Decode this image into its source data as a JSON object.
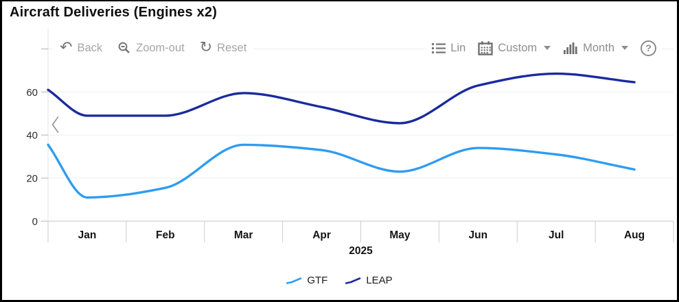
{
  "header": {
    "title": "Aircraft Deliveries (Engines x2)"
  },
  "toolbar": {
    "back_label": "Back",
    "zoom_out_label": "Zoom-out",
    "reset_label": "Reset",
    "lin_label": "Lin",
    "custom_label": "Custom",
    "month_label": "Month",
    "help_glyph": "?"
  },
  "icons": {
    "back": "↶",
    "reset": "↻",
    "zoom_out": "magnifier-with-minus",
    "lin": "bulleted-list",
    "custom": "calendar",
    "month": "bar-chart",
    "help": "question-mark-circle",
    "collapse": "chevron-left",
    "dropdown": "caret-down"
  },
  "chart_data": {
    "type": "line",
    "title": "Aircraft Deliveries (Engines x2)",
    "x_categories": [
      "Jan",
      "Feb",
      "Mar",
      "Apr",
      "May",
      "Jun",
      "Jul",
      "Aug"
    ],
    "x_period_label": "2025",
    "xlabel": "",
    "ylabel": "",
    "ylim": [
      0,
      80
    ],
    "yticks": [
      0,
      20,
      40,
      60
    ],
    "gridlines": [
      20,
      40,
      60,
      80
    ],
    "grid": true,
    "legend_position": "bottom",
    "series": [
      {
        "name": "GTF",
        "color": "#2f9cf0",
        "left_edge_value": 35.5,
        "values": [
          11,
          15.5,
          35.5,
          33,
          23,
          34,
          31,
          24
        ]
      },
      {
        "name": "LEAP",
        "color": "#1a2a9e",
        "left_edge_value": 61,
        "values": [
          49,
          49,
          59.5,
          53,
          45.5,
          63,
          68.5,
          64.5
        ]
      }
    ]
  }
}
